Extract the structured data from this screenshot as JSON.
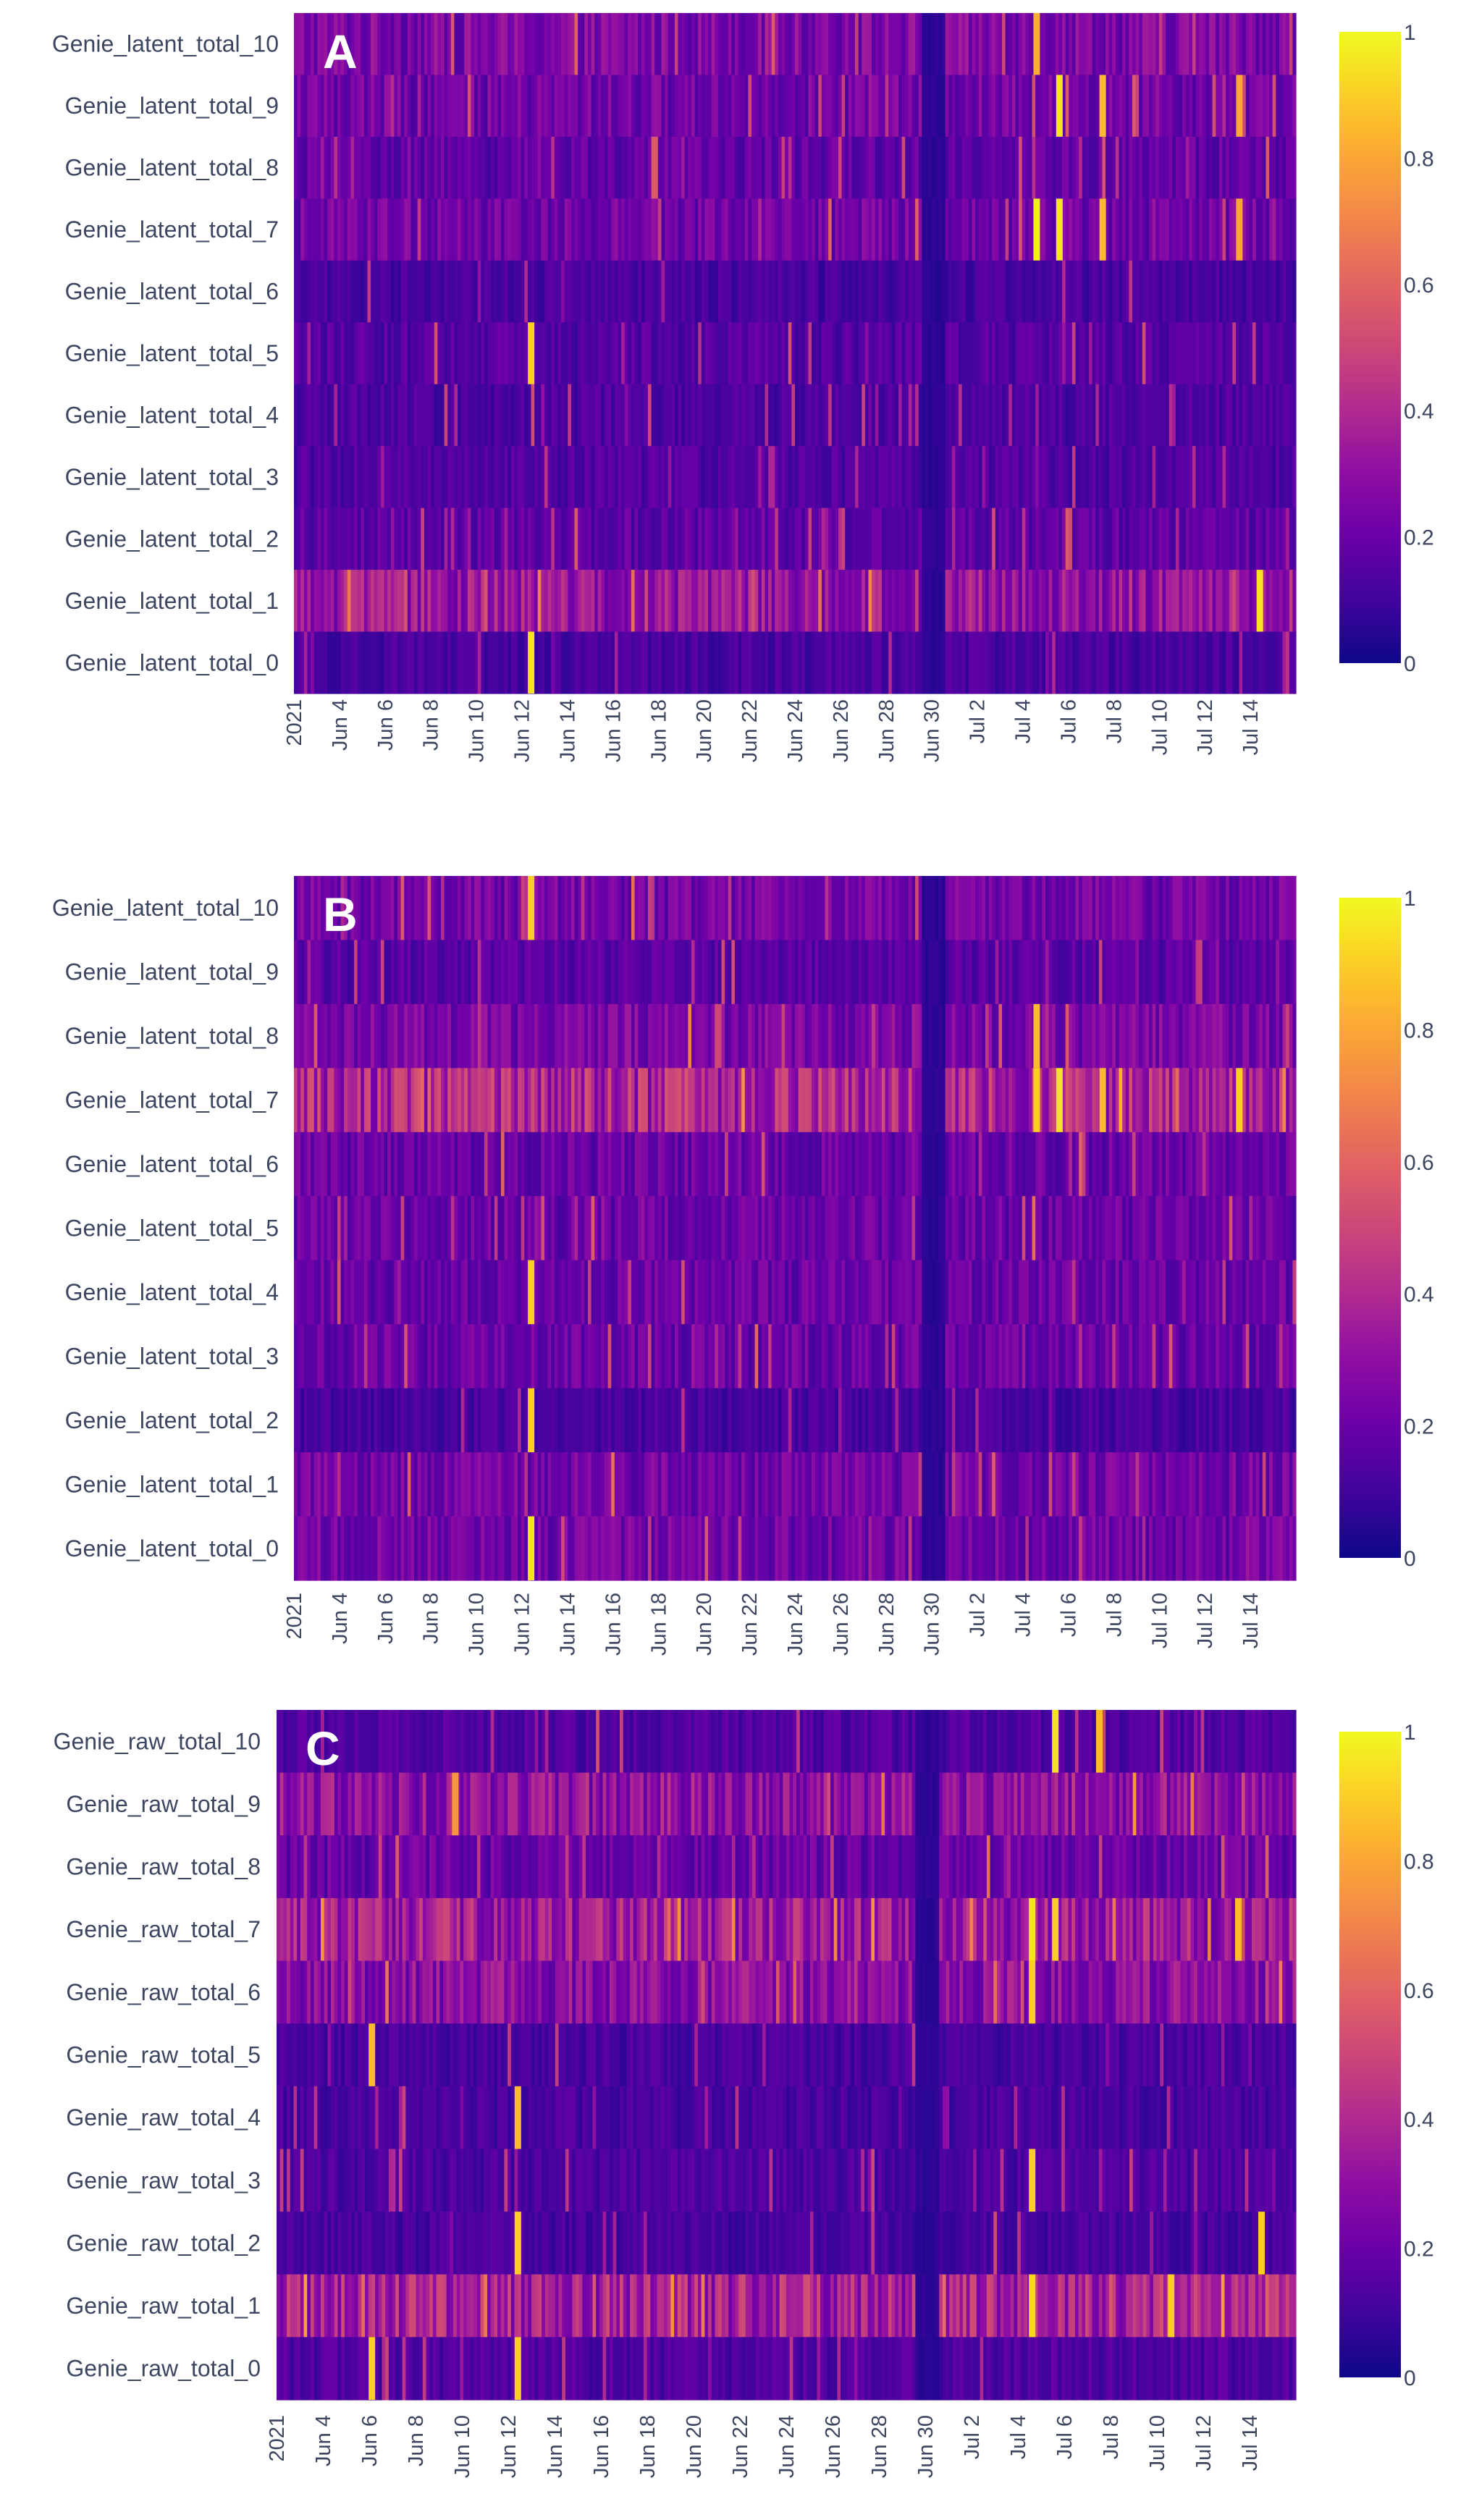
{
  "chart_data": [
    {
      "type": "heatmap",
      "panel_letter": "A",
      "y_labels": [
        "Genie_latent_total_10",
        "Genie_latent_total_9",
        "Genie_latent_total_8",
        "Genie_latent_total_7",
        "Genie_latent_total_6",
        "Genie_latent_total_5",
        "Genie_latent_total_4",
        "Genie_latent_total_3",
        "Genie_latent_total_2",
        "Genie_latent_total_1",
        "Genie_latent_total_0"
      ],
      "x_ticks": [
        "2021",
        "Jun 4",
        "Jun 6",
        "Jun 8",
        "Jun 10",
        "Jun 12",
        "Jun 14",
        "Jun 16",
        "Jun 18",
        "Jun 20",
        "Jun 22",
        "Jun 24",
        "Jun 26",
        "Jun 28",
        "Jun 30",
        "Jul 2",
        "Jul 4",
        "Jul 6",
        "Jul 8",
        "Jul 10",
        "Jul 12",
        "Jul 14"
      ],
      "x_range": [
        "Jun 2, 2021",
        "Jul 15, 2021"
      ],
      "colorbar": {
        "ticks": [
          "1",
          "0.8",
          "0.6",
          "0.4",
          "0.2",
          "0"
        ],
        "range": [
          0,
          1
        ],
        "colorscale": "plasma"
      },
      "row_levels": [
        0.25,
        0.22,
        0.18,
        0.22,
        0.12,
        0.15,
        0.13,
        0.14,
        0.17,
        0.32,
        0.12
      ],
      "highlights": [
        {
          "row": 0,
          "date": "Jul 4.6",
          "value": 0.82
        },
        {
          "row": 1,
          "date": "Jul 5.6",
          "value": 0.95
        },
        {
          "row": 1,
          "date": "Jul 7.5",
          "value": 0.85
        },
        {
          "row": 1,
          "date": "Jul 13.5",
          "value": 0.8
        },
        {
          "row": 3,
          "date": "Jul 4.6",
          "value": 0.98
        },
        {
          "row": 3,
          "date": "Jul 5.6",
          "value": 0.95
        },
        {
          "row": 3,
          "date": "Jul 7.5",
          "value": 0.85
        },
        {
          "row": 3,
          "date": "Jul 13.5",
          "value": 0.8
        },
        {
          "row": 5,
          "date": "Jun 12.4",
          "value": 0.9
        },
        {
          "row": 9,
          "date": "Jul 14.4",
          "value": 0.95
        },
        {
          "row": 10,
          "date": "Jun 12.4",
          "value": 0.95
        }
      ]
    },
    {
      "type": "heatmap",
      "panel_letter": "B",
      "y_labels": [
        "Genie_latent_total_10",
        "Genie_latent_total_9",
        "Genie_latent_total_8",
        "Genie_latent_total_7",
        "Genie_latent_total_6",
        "Genie_latent_total_5",
        "Genie_latent_total_4",
        "Genie_latent_total_3",
        "Genie_latent_total_2",
        "Genie_latent_total_1",
        "Genie_latent_total_0"
      ],
      "x_ticks": [
        "2021",
        "Jun 4",
        "Jun 6",
        "Jun 8",
        "Jun 10",
        "Jun 12",
        "Jun 14",
        "Jun 16",
        "Jun 18",
        "Jun 20",
        "Jun 22",
        "Jun 24",
        "Jun 26",
        "Jun 28",
        "Jun 30",
        "Jul 2",
        "Jul 4",
        "Jul 6",
        "Jul 8",
        "Jul 10",
        "Jul 12",
        "Jul 14"
      ],
      "x_range": [
        "Jun 2, 2021",
        "Jul 15, 2021"
      ],
      "colorbar": {
        "ticks": [
          "1",
          "0.8",
          "0.6",
          "0.4",
          "0.2",
          "0"
        ],
        "range": [
          0,
          1
        ],
        "colorscale": "plasma"
      },
      "row_levels": [
        0.22,
        0.16,
        0.24,
        0.38,
        0.2,
        0.2,
        0.2,
        0.2,
        0.12,
        0.22,
        0.22
      ],
      "highlights": [
        {
          "row": 0,
          "date": "Jun 12.4",
          "value": 0.9
        },
        {
          "row": 2,
          "date": "Jul 4.6",
          "value": 0.85
        },
        {
          "row": 3,
          "date": "Jul 4.6",
          "value": 0.9
        },
        {
          "row": 3,
          "date": "Jul 5.6",
          "value": 0.95
        },
        {
          "row": 3,
          "date": "Jul 7.5",
          "value": 0.85
        },
        {
          "row": 3,
          "date": "Jul 13.5",
          "value": 0.9
        },
        {
          "row": 6,
          "date": "Jun 12.4",
          "value": 0.9
        },
        {
          "row": 8,
          "date": "Jun 12.4",
          "value": 0.9
        },
        {
          "row": 10,
          "date": "Jun 12.4",
          "value": 0.95
        }
      ]
    },
    {
      "type": "heatmap",
      "panel_letter": "C",
      "y_labels": [
        "Genie_raw_total_10",
        "Genie_raw_total_9",
        "Genie_raw_total_8",
        "Genie_raw_total_7",
        "Genie_raw_total_6",
        "Genie_raw_total_5",
        "Genie_raw_total_4",
        "Genie_raw_total_3",
        "Genie_raw_total_2",
        "Genie_raw_total_1",
        "Genie_raw_total_0"
      ],
      "x_ticks": [
        "2021",
        "Jun 4",
        "Jun 6",
        "Jun 8",
        "Jun 10",
        "Jun 12",
        "Jun 14",
        "Jun 16",
        "Jun 18",
        "Jun 20",
        "Jun 22",
        "Jun 24",
        "Jun 26",
        "Jun 28",
        "Jun 30",
        "Jul 2",
        "Jul 4",
        "Jul 6",
        "Jul 8",
        "Jul 10",
        "Jul 12",
        "Jul 14"
      ],
      "x_range": [
        "Jun 2, 2021",
        "Jul 15, 2021"
      ],
      "colorbar": {
        "ticks": [
          "1",
          "0.8",
          "0.6",
          "0.4",
          "0.2",
          "0"
        ],
        "range": [
          0,
          1
        ],
        "colorscale": "plasma"
      },
      "row_levels": [
        0.14,
        0.3,
        0.2,
        0.34,
        0.28,
        0.12,
        0.12,
        0.13,
        0.12,
        0.36,
        0.14
      ],
      "highlights": [
        {
          "row": 0,
          "date": "Jul 5.6",
          "value": 0.95
        },
        {
          "row": 0,
          "date": "Jul 7.5",
          "value": 0.85
        },
        {
          "row": 1,
          "date": "Jun 9.7",
          "value": 0.75
        },
        {
          "row": 3,
          "date": "Jul 4.6",
          "value": 0.95
        },
        {
          "row": 3,
          "date": "Jul 5.6",
          "value": 0.9
        },
        {
          "row": 3,
          "date": "Jul 13.5",
          "value": 0.85
        },
        {
          "row": 4,
          "date": "Jul 4.6",
          "value": 0.9
        },
        {
          "row": 5,
          "date": "Jun 6.1",
          "value": 0.85
        },
        {
          "row": 6,
          "date": "Jun 12.4",
          "value": 0.85
        },
        {
          "row": 7,
          "date": "Jul 4.6",
          "value": 0.9
        },
        {
          "row": 8,
          "date": "Jun 12.4",
          "value": 0.9
        },
        {
          "row": 8,
          "date": "Jul 14.5",
          "value": 0.9
        },
        {
          "row": 9,
          "date": "Jul 4.6",
          "value": 0.92
        },
        {
          "row": 9,
          "date": "Jul 10.6",
          "value": 0.9
        },
        {
          "row": 10,
          "date": "Jun 6.1",
          "value": 0.9
        },
        {
          "row": 10,
          "date": "Jun 12.4",
          "value": 0.9
        }
      ]
    }
  ]
}
